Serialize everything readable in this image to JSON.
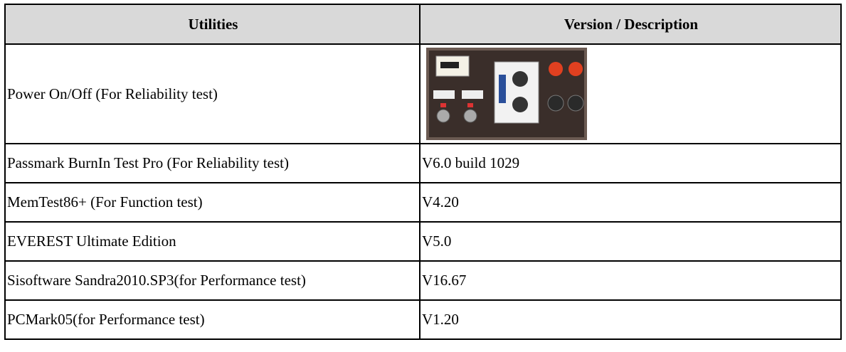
{
  "table": {
    "header": [
      "Utilities",
      "Version / Description"
    ],
    "rows": [
      {
        "utility": "Power On/Off (For Reliability test)"
      },
      {
        "utility": "Passmark BurnIn Test Pro (For Reliability test)",
        "version": "V6.0 build 1029"
      },
      {
        "utility": "MemTest86+ (For Function test)",
        "version": "V4.20"
      },
      {
        "utility": "EVEREST Ultimate Edition",
        "version": "V5.0"
      },
      {
        "utility": "Sisoftware Sandra2010.SP3(for Performance test)",
        "version": "V16.67"
      },
      {
        "utility": "PCMark05(for Performance test)",
        "version": "V1.20"
      }
    ]
  }
}
